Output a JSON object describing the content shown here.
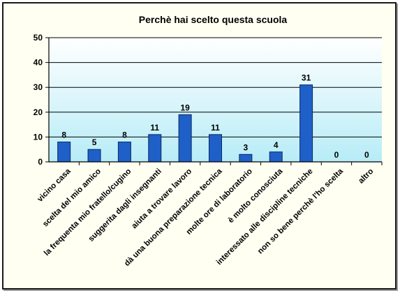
{
  "chart_data": {
    "type": "bar",
    "title": "Perchè hai scelto questa scuola",
    "categories": [
      "vicino casa",
      "scelta del mio amico",
      "la frequenta mio fratello/cugino",
      "suggerita dagli insegnanti",
      "aiuta a trovare lavoro",
      "dà una buona preparazione tecnica",
      "molte ore di laboratorio",
      "è molto conosciuta",
      "interessato alle discipline tecniche",
      "non so bene perchè l'ho scelta",
      "altro"
    ],
    "values": [
      8,
      5,
      8,
      11,
      19,
      11,
      3,
      4,
      31,
      0,
      0
    ],
    "data_labels": [
      "8",
      "5",
      "8",
      "11",
      "19",
      "11",
      "3",
      "4",
      "31",
      "0",
      "0"
    ],
    "ylim": [
      0,
      50
    ],
    "yticks": [
      "0",
      "10",
      "20",
      "30",
      "40",
      "50"
    ],
    "grid": true,
    "legend": "none",
    "colors": {
      "bar": "#1f5fc8",
      "bar_edge": "#0a2a66",
      "plot_bg_top": "#ffffff",
      "plot_bg_bottom": "#b7ecf7",
      "frame_bg": "#fffff2"
    }
  }
}
